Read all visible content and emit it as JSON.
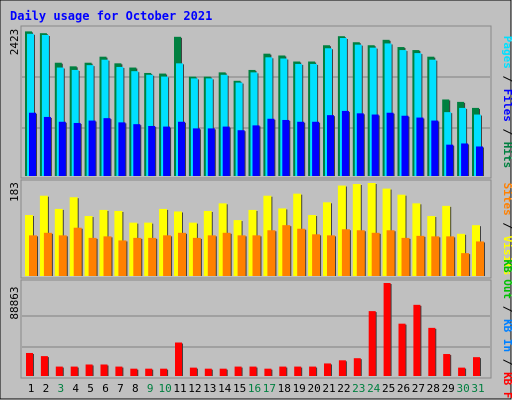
{
  "chart_data": [
    {
      "type": "bar",
      "title": "Daily usage for October 2021",
      "ylabel_max": "2423",
      "ylim": [
        0,
        2423
      ],
      "categories": [
        "1",
        "2",
        "3",
        "4",
        "5",
        "6",
        "7",
        "8",
        "9",
        "10",
        "11",
        "12",
        "13",
        "14",
        "15",
        "16",
        "17",
        "18",
        "19",
        "20",
        "21",
        "22",
        "23",
        "24",
        "25",
        "26",
        "27",
        "28",
        "29",
        "30",
        "31"
      ],
      "weekend_days": [
        "3",
        "9",
        "10",
        "16",
        "17",
        "23",
        "24",
        "30",
        "31"
      ],
      "legend": [
        "Pages",
        "Files",
        "Hits"
      ],
      "series": [
        {
          "name": "Hits",
          "color": "#008040",
          "values": [
            2400,
            2370,
            1880,
            1820,
            1880,
            1980,
            1870,
            1800,
            1710,
            1700,
            2310,
            1650,
            1650,
            1720,
            1580,
            1760,
            2030,
            2000,
            1900,
            1900,
            2170,
            2320,
            2220,
            2170,
            2260,
            2140,
            2090,
            1980,
            1270,
            1230,
            1130
          ]
        },
        {
          "name": "Files",
          "color": "#00e0ff",
          "values": [
            2360,
            2340,
            1800,
            1760,
            1840,
            1930,
            1810,
            1740,
            1680,
            1650,
            1870,
            1620,
            1620,
            1680,
            1550,
            1720,
            1970,
            1950,
            1860,
            1860,
            2120,
            2290,
            2180,
            2130,
            2200,
            2090,
            2040,
            1930,
            1060,
            1130,
            1020
          ]
        },
        {
          "name": "Pages",
          "color": "#0000ff",
          "values": [
            1050,
            980,
            900,
            880,
            920,
            960,
            890,
            860,
            830,
            820,
            900,
            790,
            790,
            820,
            760,
            840,
            950,
            930,
            900,
            900,
            1010,
            1080,
            1040,
            1020,
            1050,
            1000,
            970,
            920,
            520,
            540,
            490
          ]
        }
      ]
    },
    {
      "type": "bar",
      "ylabel_max": "183",
      "ylim": [
        0,
        183
      ],
      "categories": [
        "1",
        "2",
        "3",
        "4",
        "5",
        "6",
        "7",
        "8",
        "9",
        "10",
        "11",
        "12",
        "13",
        "14",
        "15",
        "16",
        "17",
        "18",
        "19",
        "20",
        "21",
        "22",
        "23",
        "24",
        "25",
        "26",
        "27",
        "28",
        "29",
        "30",
        "31"
      ],
      "legend": [
        "Visits",
        "Sites"
      ],
      "series": [
        {
          "name": "Visits",
          "color": "#ffff00",
          "values": [
            120,
            158,
            132,
            155,
            118,
            130,
            128,
            105,
            105,
            132,
            127,
            105,
            128,
            143,
            110,
            130,
            158,
            133,
            162,
            120,
            145,
            178,
            181,
            183,
            172,
            160,
            143,
            118,
            138,
            83,
            100
          ]
        },
        {
          "name": "Sites",
          "color": "#ff8000",
          "values": [
            80,
            85,
            80,
            95,
            75,
            78,
            70,
            75,
            75,
            80,
            85,
            75,
            80,
            85,
            80,
            80,
            90,
            100,
            93,
            82,
            80,
            92,
            90,
            85,
            90,
            75,
            79,
            78,
            78,
            45,
            68
          ]
        }
      ]
    },
    {
      "type": "bar",
      "ylabel_max": "88863",
      "ylim": [
        0,
        88863
      ],
      "categories": [
        "1",
        "2",
        "3",
        "4",
        "5",
        "6",
        "7",
        "8",
        "9",
        "10",
        "11",
        "12",
        "13",
        "14",
        "15",
        "16",
        "17",
        "18",
        "19",
        "20",
        "21",
        "22",
        "23",
        "24",
        "25",
        "26",
        "27",
        "28",
        "29",
        "30",
        "31"
      ],
      "legend": [
        "KB F",
        "KB In",
        "KB Out"
      ],
      "series": [
        {
          "name": "KB F",
          "color": "#ff0000",
          "values": [
            22000,
            19000,
            9000,
            9000,
            11000,
            11000,
            9000,
            7000,
            7000,
            7000,
            32000,
            8000,
            7000,
            7000,
            9000,
            9000,
            7000,
            9000,
            9000,
            9000,
            12000,
            15000,
            17000,
            62000,
            88863,
            50000,
            68000,
            46000,
            21000,
            8000,
            18000
          ]
        }
      ]
    }
  ]
}
